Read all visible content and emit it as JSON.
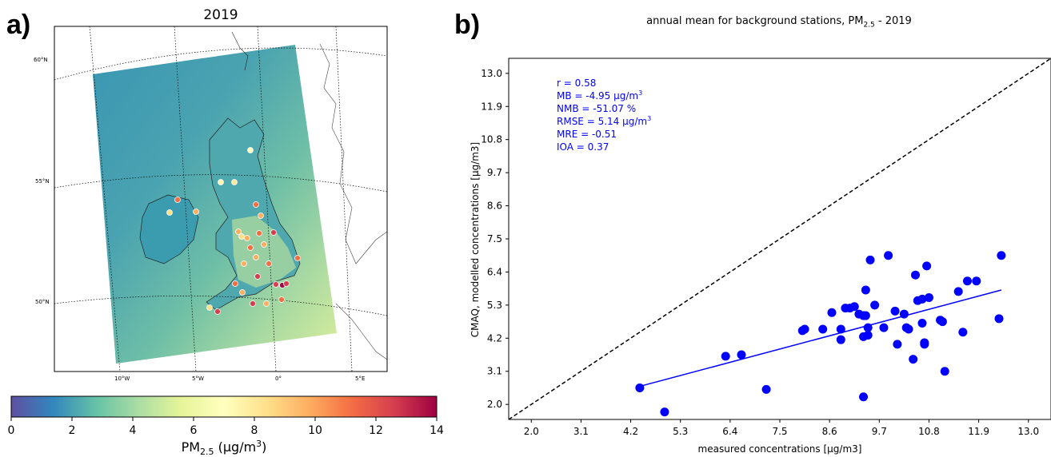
{
  "panel_a": {
    "letter": "a)",
    "title": "2019",
    "lat_labels": [
      "60°N",
      "55°N",
      "50°N"
    ],
    "lon_labels": [
      "10°W",
      "5°W",
      "0°",
      "5°E"
    ],
    "colorbar": {
      "ticks": [
        "0",
        "2",
        "4",
        "6",
        "8",
        "10",
        "12",
        "14"
      ],
      "label": "PM",
      "label_sub": "2.5",
      "label_unit": " (μg/m",
      "label_sup": "3",
      "label_close": ")",
      "colors": [
        "#5e4fa2",
        "#3288bd",
        "#66c2a5",
        "#abdda4",
        "#e6f598",
        "#ffffbf",
        "#fee08b",
        "#fdae61",
        "#f46d43",
        "#d53e4f",
        "#9e0142"
      ]
    }
  },
  "panel_b": {
    "letter": "b)",
    "title": "annual mean for background stations, PM",
    "title_sub": "2.5",
    "title_rest": " - 2019",
    "stats": [
      {
        "text": "r = 0.58"
      },
      {
        "text": "MB = -4.95 μg/m",
        "sup": "3"
      },
      {
        "text": "NMB = -51.07 %"
      },
      {
        "text": "RMSE = 5.14 μg/m",
        "sup": "3"
      },
      {
        "text": "MRE = -0.51"
      },
      {
        "text": "IOA = 0.37"
      }
    ],
    "stats_color": "#0000ff"
  },
  "chart_data": {
    "type": "scatter",
    "title": "annual mean for background stations, PM2.5 - 2019",
    "xlabel": "measured concentrations [μg/m3]",
    "ylabel": "CMAQ, modelled concentrations [μg/m3]",
    "xlim": [
      1.5,
      13.5
    ],
    "ylim": [
      1.5,
      13.5
    ],
    "xticks": [
      "2.0",
      "3.1",
      "4.2",
      "5.3",
      "6.4",
      "7.5",
      "8.6",
      "9.7",
      "10.8",
      "11.9",
      "13.0"
    ],
    "yticks": [
      "2.0",
      "3.1",
      "4.2",
      "5.3",
      "6.4",
      "7.5",
      "8.6",
      "9.7",
      "10.8",
      "11.9",
      "13.0"
    ],
    "grid": false,
    "series": [
      {
        "color": "#0000ff",
        "points": [
          [
            4.4,
            2.55
          ],
          [
            4.95,
            1.75
          ],
          [
            6.3,
            3.6
          ],
          [
            6.65,
            3.65
          ],
          [
            7.2,
            2.5
          ],
          [
            8.0,
            4.45
          ],
          [
            8.05,
            4.5
          ],
          [
            8.45,
            4.5
          ],
          [
            8.65,
            5.05
          ],
          [
            8.85,
            4.5
          ],
          [
            8.85,
            4.15
          ],
          [
            8.95,
            5.2
          ],
          [
            9.05,
            5.2
          ],
          [
            9.15,
            5.25
          ],
          [
            9.25,
            5.0
          ],
          [
            9.35,
            4.95
          ],
          [
            9.35,
            4.25
          ],
          [
            9.35,
            2.25
          ],
          [
            9.4,
            5.8
          ],
          [
            9.4,
            4.95
          ],
          [
            9.45,
            4.55
          ],
          [
            9.45,
            4.3
          ],
          [
            9.5,
            6.8
          ],
          [
            9.6,
            5.3
          ],
          [
            9.8,
            4.55
          ],
          [
            9.9,
            6.95
          ],
          [
            10.05,
            5.1
          ],
          [
            10.1,
            4.0
          ],
          [
            10.25,
            5.0
          ],
          [
            10.3,
            4.55
          ],
          [
            10.35,
            4.5
          ],
          [
            10.45,
            3.5
          ],
          [
            10.5,
            6.3
          ],
          [
            10.55,
            5.45
          ],
          [
            10.65,
            5.5
          ],
          [
            10.65,
            4.7
          ],
          [
            10.7,
            4.05
          ],
          [
            10.7,
            4.0
          ],
          [
            10.75,
            6.6
          ],
          [
            10.8,
            5.55
          ],
          [
            11.05,
            4.8
          ],
          [
            11.1,
            4.75
          ],
          [
            11.15,
            3.1
          ],
          [
            11.45,
            5.75
          ],
          [
            11.55,
            4.4
          ],
          [
            11.65,
            6.1
          ],
          [
            11.85,
            6.1
          ],
          [
            12.35,
            4.85
          ],
          [
            12.4,
            6.95
          ]
        ]
      }
    ],
    "fit_line": {
      "x": [
        4.4,
        12.4
      ],
      "y": [
        2.6,
        5.8
      ],
      "color": "#0000ff"
    },
    "reference_line": {
      "x": [
        1.5,
        13.5
      ],
      "y": [
        1.5,
        13.5
      ],
      "style": "dashed",
      "color": "#000000"
    }
  }
}
